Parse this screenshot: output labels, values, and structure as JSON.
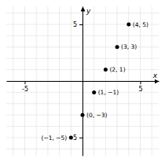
{
  "chart_data": {
    "type": "scatter",
    "x": [
      -1,
      0,
      1,
      2,
      3,
      4
    ],
    "values": [
      -5,
      -3,
      -1,
      1,
      3,
      5
    ],
    "value_labels": [
      "(−1, −5)",
      "(0, −3)",
      "(1, −1)",
      "(2, 1)",
      "(3, 3)",
      "(4, 5)"
    ],
    "data_labels": true,
    "xlim": [
      -6.6,
      6.6
    ],
    "ylim": [
      -6.6,
      6.6
    ],
    "xticks": [
      -5,
      5
    ],
    "yticks": [
      -5,
      5
    ],
    "xlabel": "x",
    "ylabel": "y",
    "grid": true,
    "color": "#000000"
  }
}
